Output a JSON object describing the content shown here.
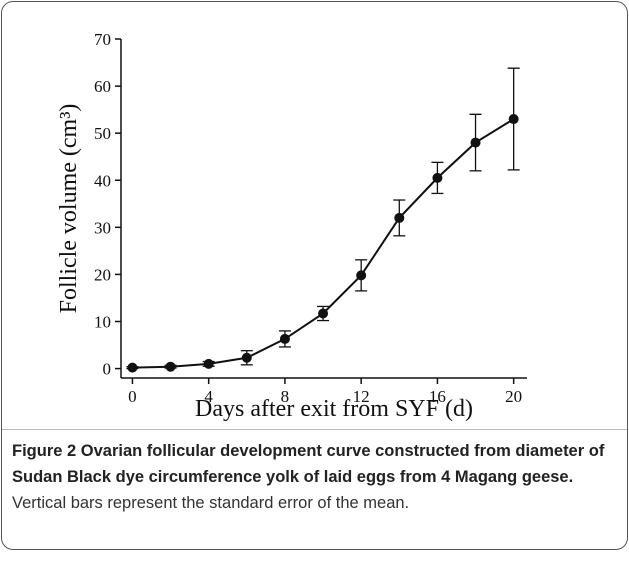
{
  "chart_data": {
    "type": "line",
    "xlabel": "Days after exit from SYF (d)",
    "ylabel": "Follicle volume (cm³)",
    "x": [
      0,
      2,
      4,
      6,
      8,
      10,
      12,
      14,
      16,
      18,
      20
    ],
    "values": [
      0.2,
      0.4,
      1.0,
      2.3,
      6.3,
      11.7,
      19.8,
      32,
      40.5,
      48,
      53
    ],
    "errors": [
      0.2,
      0.3,
      0.5,
      1.5,
      1.7,
      1.5,
      3.3,
      3.8,
      3.3,
      6,
      10.8
    ],
    "color": "#111111",
    "xlim": [
      -0.6,
      20.7
    ],
    "ylim": [
      -2,
      70
    ],
    "xticks": [
      0,
      4,
      8,
      12,
      16,
      20
    ],
    "yticks": [
      0,
      10,
      20,
      30,
      40,
      50,
      60,
      70
    ],
    "caption_title": "Figure 2 Ovarian follicular development curve constructed from diameter of Sudan Black dye circumference yolk of laid eggs from 4 Magang geese.",
    "caption_text": "Vertical bars represent the standard error of the mean."
  }
}
